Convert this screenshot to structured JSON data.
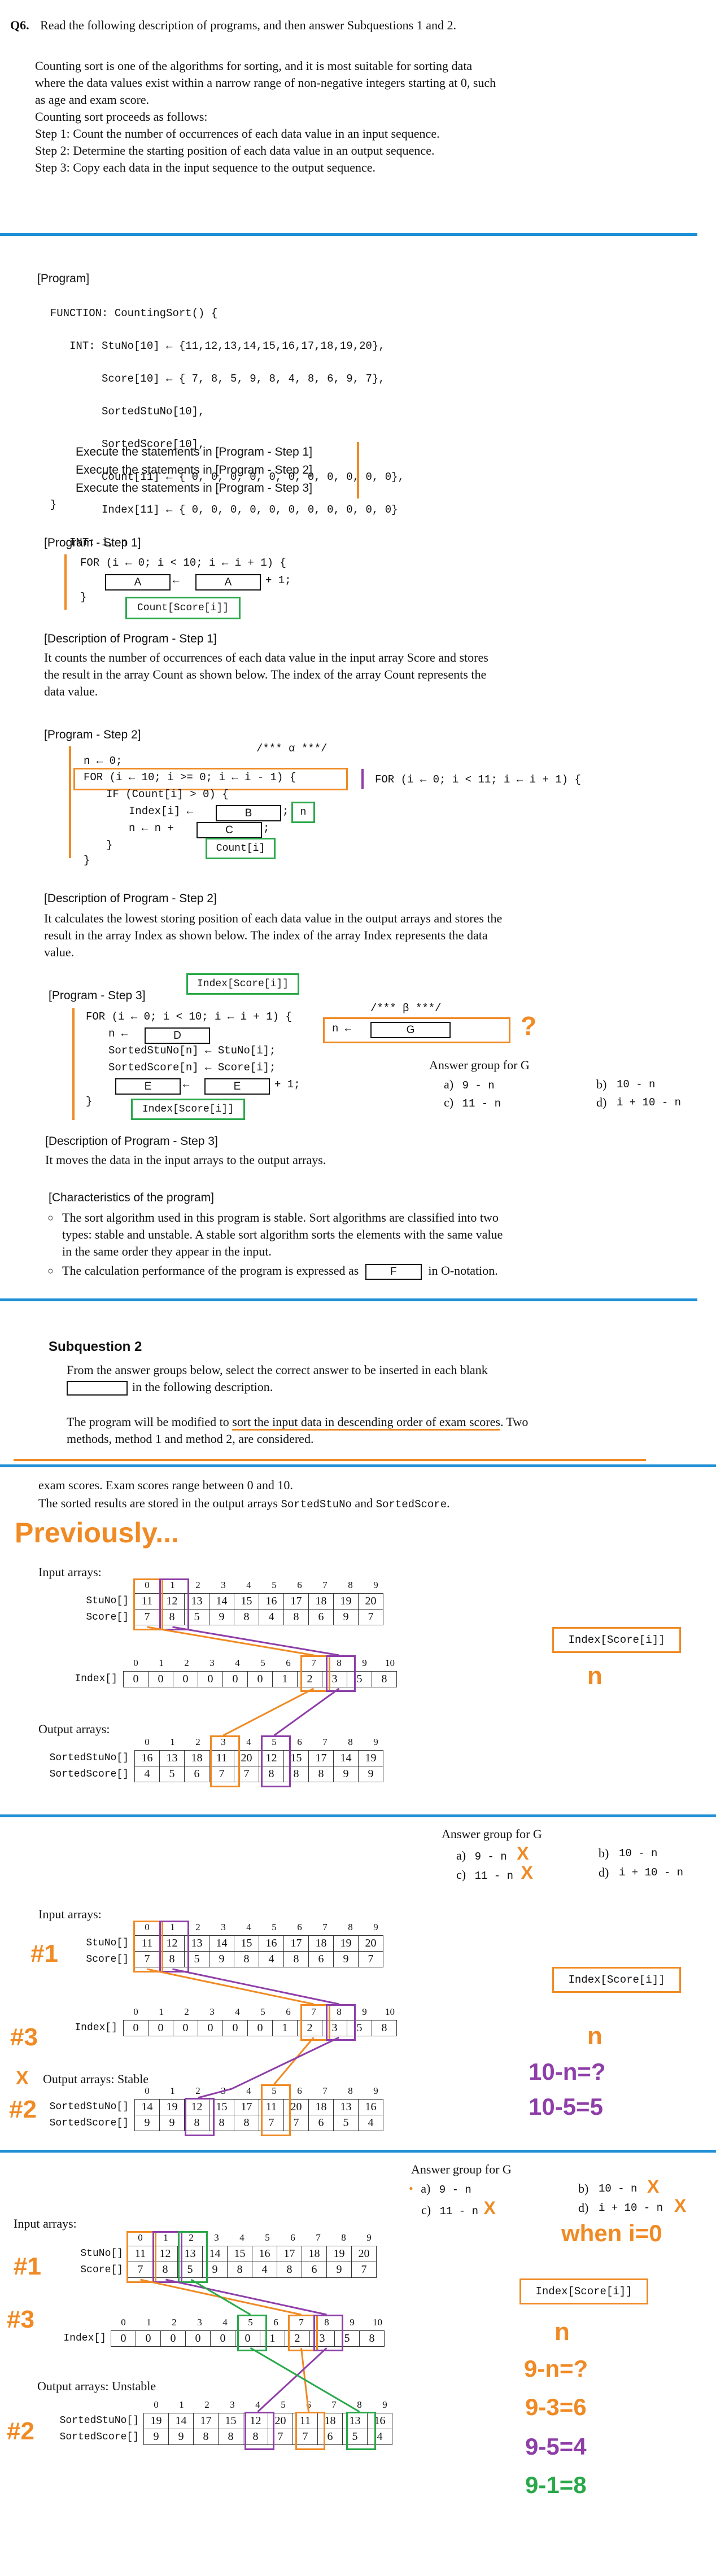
{
  "header": {
    "qnum": "Q6.",
    "instruction": "Read the following description of programs, and then answer Subquestions 1 and 2."
  },
  "intro": [
    "Counting sort is one of the algorithms for sorting, and it is most suitable for sorting data",
    "where the data values exist within a narrow range of non-negative integers starting at 0, such",
    "as age and exam score.",
    "Counting sort proceeds as follows:",
    "Step 1: Count the number of occurrences of each data value in an input sequence.",
    "Step 2: Determine the starting position of each data value in an output sequence.",
    "Step 3: Copy each data in the input sequence to the output sequence."
  ],
  "program": {
    "title": "[Program]",
    "code": [
      "  FUNCTION: CountingSort() {",
      "     INT: StuNo[10] ← {11,12,13,14,15,16,17,18,19,20},",
      "          Score[10] ← { 7, 8, 5, 9, 8, 4, 8, 6, 9, 7},",
      "          SortedStuNo[10],",
      "          SortedScore[10],",
      "          Count[11] ← { 0, 0, 0, 0, 0, 0, 0, 0, 0, 0, 0},",
      "          Index[11] ← { 0, 0, 0, 0, 0, 0, 0, 0, 0, 0, 0}",
      "     INT: i, n"
    ],
    "exec": [
      "Execute the statements in [Program - Step 1]",
      "Execute the statements in [Program - Step 2]",
      "Execute the statements in [Program - Step 3]"
    ],
    "close": "  }"
  },
  "step1": {
    "title": "[Program - Step 1]",
    "line1": "FOR (i ← 0; i < 10; i ← i + 1) {",
    "box_a": "A",
    "arrow": "←",
    "plus": "+ 1;",
    "close": "}",
    "green_label": "Count[Score[i]]",
    "desc_title": "[Description of Program - Step 1]",
    "desc": [
      "It counts the number of occurrences of each data value in the input array Score and stores",
      "the result in the array Count as shown below. The index of the array Count represents the",
      "data value."
    ]
  },
  "step2": {
    "title": "[Program - Step 2]",
    "alpha": "/*** α ***/",
    "lines": [
      "n ← 0;",
      "FOR (i ← 10; i >= 0; i ← i - 1) {",
      "IF (Count[i] > 0) {",
      "Index[i] ←",
      "n ← n +",
      "}",
      "}"
    ],
    "box_b": "B",
    "box_c": "C",
    "semi": ";",
    "green_n": "n",
    "green_count": "Count[i]",
    "alt_for": "FOR (i ← 0; i < 11; i ← i + 1) {",
    "desc_title": "[Description of Program - Step 2]",
    "desc": [
      "It calculates the lowest storing position of each data value in the output arrays and stores the",
      "result in the array Index as shown below. The index of the array Index represents the data",
      "value."
    ]
  },
  "step3": {
    "title": "[Program - Step 3]",
    "green_top": "Index[Score[i]]",
    "beta": "/*** β ***/",
    "lines": [
      "FOR (i ← 0; i < 10; i ← i + 1) {",
      "n ←",
      "SortedStuNo[n] ← StuNo[i];",
      "SortedScore[n] ← Score[i];",
      "+ 1;",
      "}"
    ],
    "box_d": "D",
    "box_e": "E",
    "box_g": "G",
    "orange_n": "n ←",
    "qmark": "?",
    "green_bottom": "Index[Score[i]]",
    "desc_title": "[Description of Program - Step 3]",
    "desc": "It moves the data in the input arrays to the output arrays."
  },
  "answer_g": {
    "title": "Answer group for G",
    "options": [
      {
        "key": "a)",
        "code": "9 - n"
      },
      {
        "key": "b)",
        "code": "10 - n"
      },
      {
        "key": "c)",
        "code": "11 - n"
      },
      {
        "key": "d)",
        "code": "i + 10 - n"
      }
    ]
  },
  "characteristics": {
    "title": "[Characteristics of the program]",
    "items": [
      [
        "The sort algorithm used in this program is stable. Sort algorithms are classified into two",
        "types: stable and unstable. A stable sort algorithm sorts the elements with the same value",
        "in the same order they appear in the input."
      ],
      [
        "The calculation performance of the program is expressed as",
        "F",
        "in O-notation."
      ]
    ]
  },
  "sub2": {
    "title": "Subquestion 2",
    "lines": [
      "From the answer groups below, select the correct answer to be inserted in each blank",
      "in the following description."
    ],
    "modified_pre": "The program will be modified to ",
    "modified_ul": "sort the input data in descending order of exam scores",
    "modified_post": ". Two",
    "modified_2": "methods, method 1 and method 2, are considered."
  },
  "part3": {
    "line1": "exam scores. Exam scores range between 0 and 10.",
    "line2_pre": "The sorted results are stored in the output arrays ",
    "line2_c1": "SortedStuNo",
    "line2_mid": " and ",
    "line2_c2": "SortedScore",
    "line2_post": ".",
    "previously": "Previously..."
  },
  "arrays": {
    "input_label": "Input arrays:",
    "output_label": "Output arrays:",
    "output_stable": "Output arrays: Stable",
    "output_unstable": "Output arrays: Unstable",
    "idx10": [
      "0",
      "1",
      "2",
      "3",
      "4",
      "5",
      "6",
      "7",
      "8",
      "9"
    ],
    "idx11": [
      "0",
      "1",
      "2",
      "3",
      "4",
      "5",
      "6",
      "7",
      "8",
      "9",
      "10"
    ],
    "stuno_label": "StuNo[]",
    "score_label": "Score[]",
    "index_label": "Index[]",
    "sortedstuno_label": "SortedStuNo[]",
    "sortedscore_label": "SortedScore[]",
    "stuno": [
      "11",
      "12",
      "13",
      "14",
      "15",
      "16",
      "17",
      "18",
      "19",
      "20"
    ],
    "score": [
      "7",
      "8",
      "5",
      "9",
      "8",
      "4",
      "8",
      "6",
      "9",
      "7"
    ],
    "index": [
      "0",
      "0",
      "0",
      "0",
      "0",
      "0",
      "1",
      "2",
      "3",
      "5",
      "8"
    ],
    "sorted_a_stuno": [
      "16",
      "13",
      "18",
      "11",
      "20",
      "12",
      "15",
      "17",
      "14",
      "19"
    ],
    "sorted_a_score": [
      "4",
      "5",
      "6",
      "7",
      "7",
      "8",
      "8",
      "8",
      "9",
      "9"
    ],
    "sorted_b_stuno": [
      "14",
      "19",
      "12",
      "15",
      "17",
      "11",
      "20",
      "18",
      "13",
      "16"
    ],
    "sorted_b_score": [
      "9",
      "9",
      "8",
      "8",
      "8",
      "7",
      "7",
      "6",
      "5",
      "4"
    ],
    "sorted_c_stuno": [
      "19",
      "14",
      "17",
      "15",
      "12",
      "20",
      "11",
      "18",
      "13",
      "16"
    ],
    "sorted_c_score": [
      "9",
      "9",
      "8",
      "8",
      "8",
      "7",
      "7",
      "6",
      "5",
      "4"
    ]
  },
  "annotations": {
    "index_score": "Index[Score[i]]",
    "n": "n",
    "m1": "#1",
    "m2": "#2",
    "m3": "#3",
    "x": "X",
    "eq_a1": "10-n=?",
    "eq_a2": "10-5=5",
    "when": "when i=0",
    "eq_b1": "9-n=?",
    "eq_b2": "9-3=6",
    "eq_b3": "9-5=4",
    "eq_b4": "9-1=8",
    "dot": "•"
  },
  "colors": {
    "orange": "#f08a24",
    "purple": "#8e3ea8",
    "green": "#2aa84a",
    "blue_rule": "#1f8fd6"
  }
}
